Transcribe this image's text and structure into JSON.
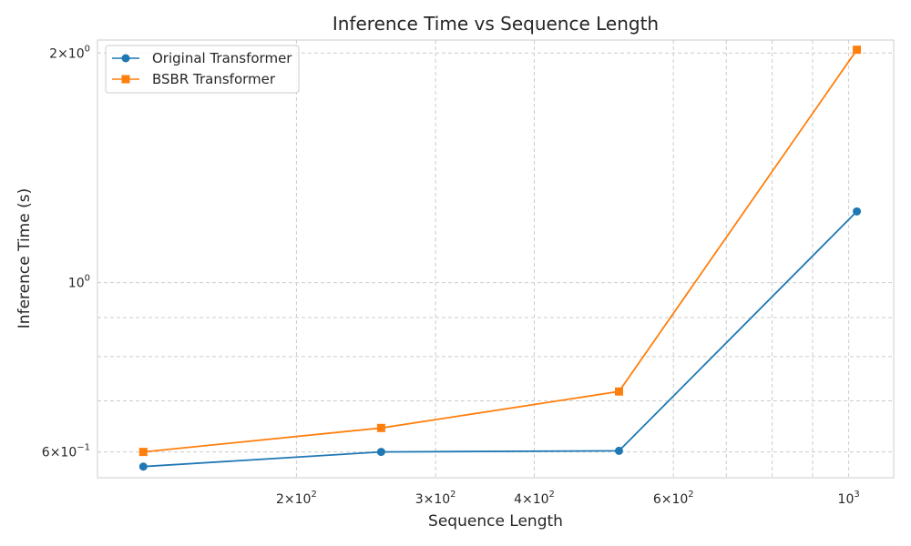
{
  "chart_data": {
    "type": "line",
    "title": "Inference Time vs Sequence Length",
    "xlabel": "Sequence Length",
    "ylabel": "Inference Time (s)",
    "xscale": "log",
    "yscale": "log",
    "xlim": [
      112,
      1140
    ],
    "ylim": [
      0.555,
      2.08
    ],
    "grid": true,
    "legend_position": "top-left",
    "x": [
      128,
      256,
      512,
      1024
    ],
    "series": [
      {
        "name": "Original Transformer",
        "values": [
          0.574,
          0.6,
          0.602,
          1.24
        ],
        "color": "#1f77b4",
        "marker": "circle"
      },
      {
        "name": "BSBR Transformer",
        "values": [
          0.6,
          0.645,
          0.72,
          2.02
        ],
        "color": "#ff7f0e",
        "marker": "square"
      }
    ],
    "x_major_ticks": [
      {
        "value": 200,
        "base": "2×10",
        "exp": "2"
      },
      {
        "value": 300,
        "base": "3×10",
        "exp": "2"
      },
      {
        "value": 400,
        "base": "4×10",
        "exp": "2"
      },
      {
        "value": 600,
        "base": "6×10",
        "exp": "2"
      },
      {
        "value": 1000,
        "base": "10",
        "exp": "3"
      }
    ],
    "x_minor_ticks": [
      700,
      800,
      900
    ],
    "y_major_ticks": [
      {
        "value": 0.6,
        "base": "6×10",
        "exp": "−1"
      },
      {
        "value": 1.0,
        "base": "10",
        "exp": "0"
      },
      {
        "value": 2.0,
        "base": "2×10",
        "exp": "0"
      }
    ],
    "y_minor_ticks": [
      0.7,
      0.8,
      0.9
    ]
  }
}
